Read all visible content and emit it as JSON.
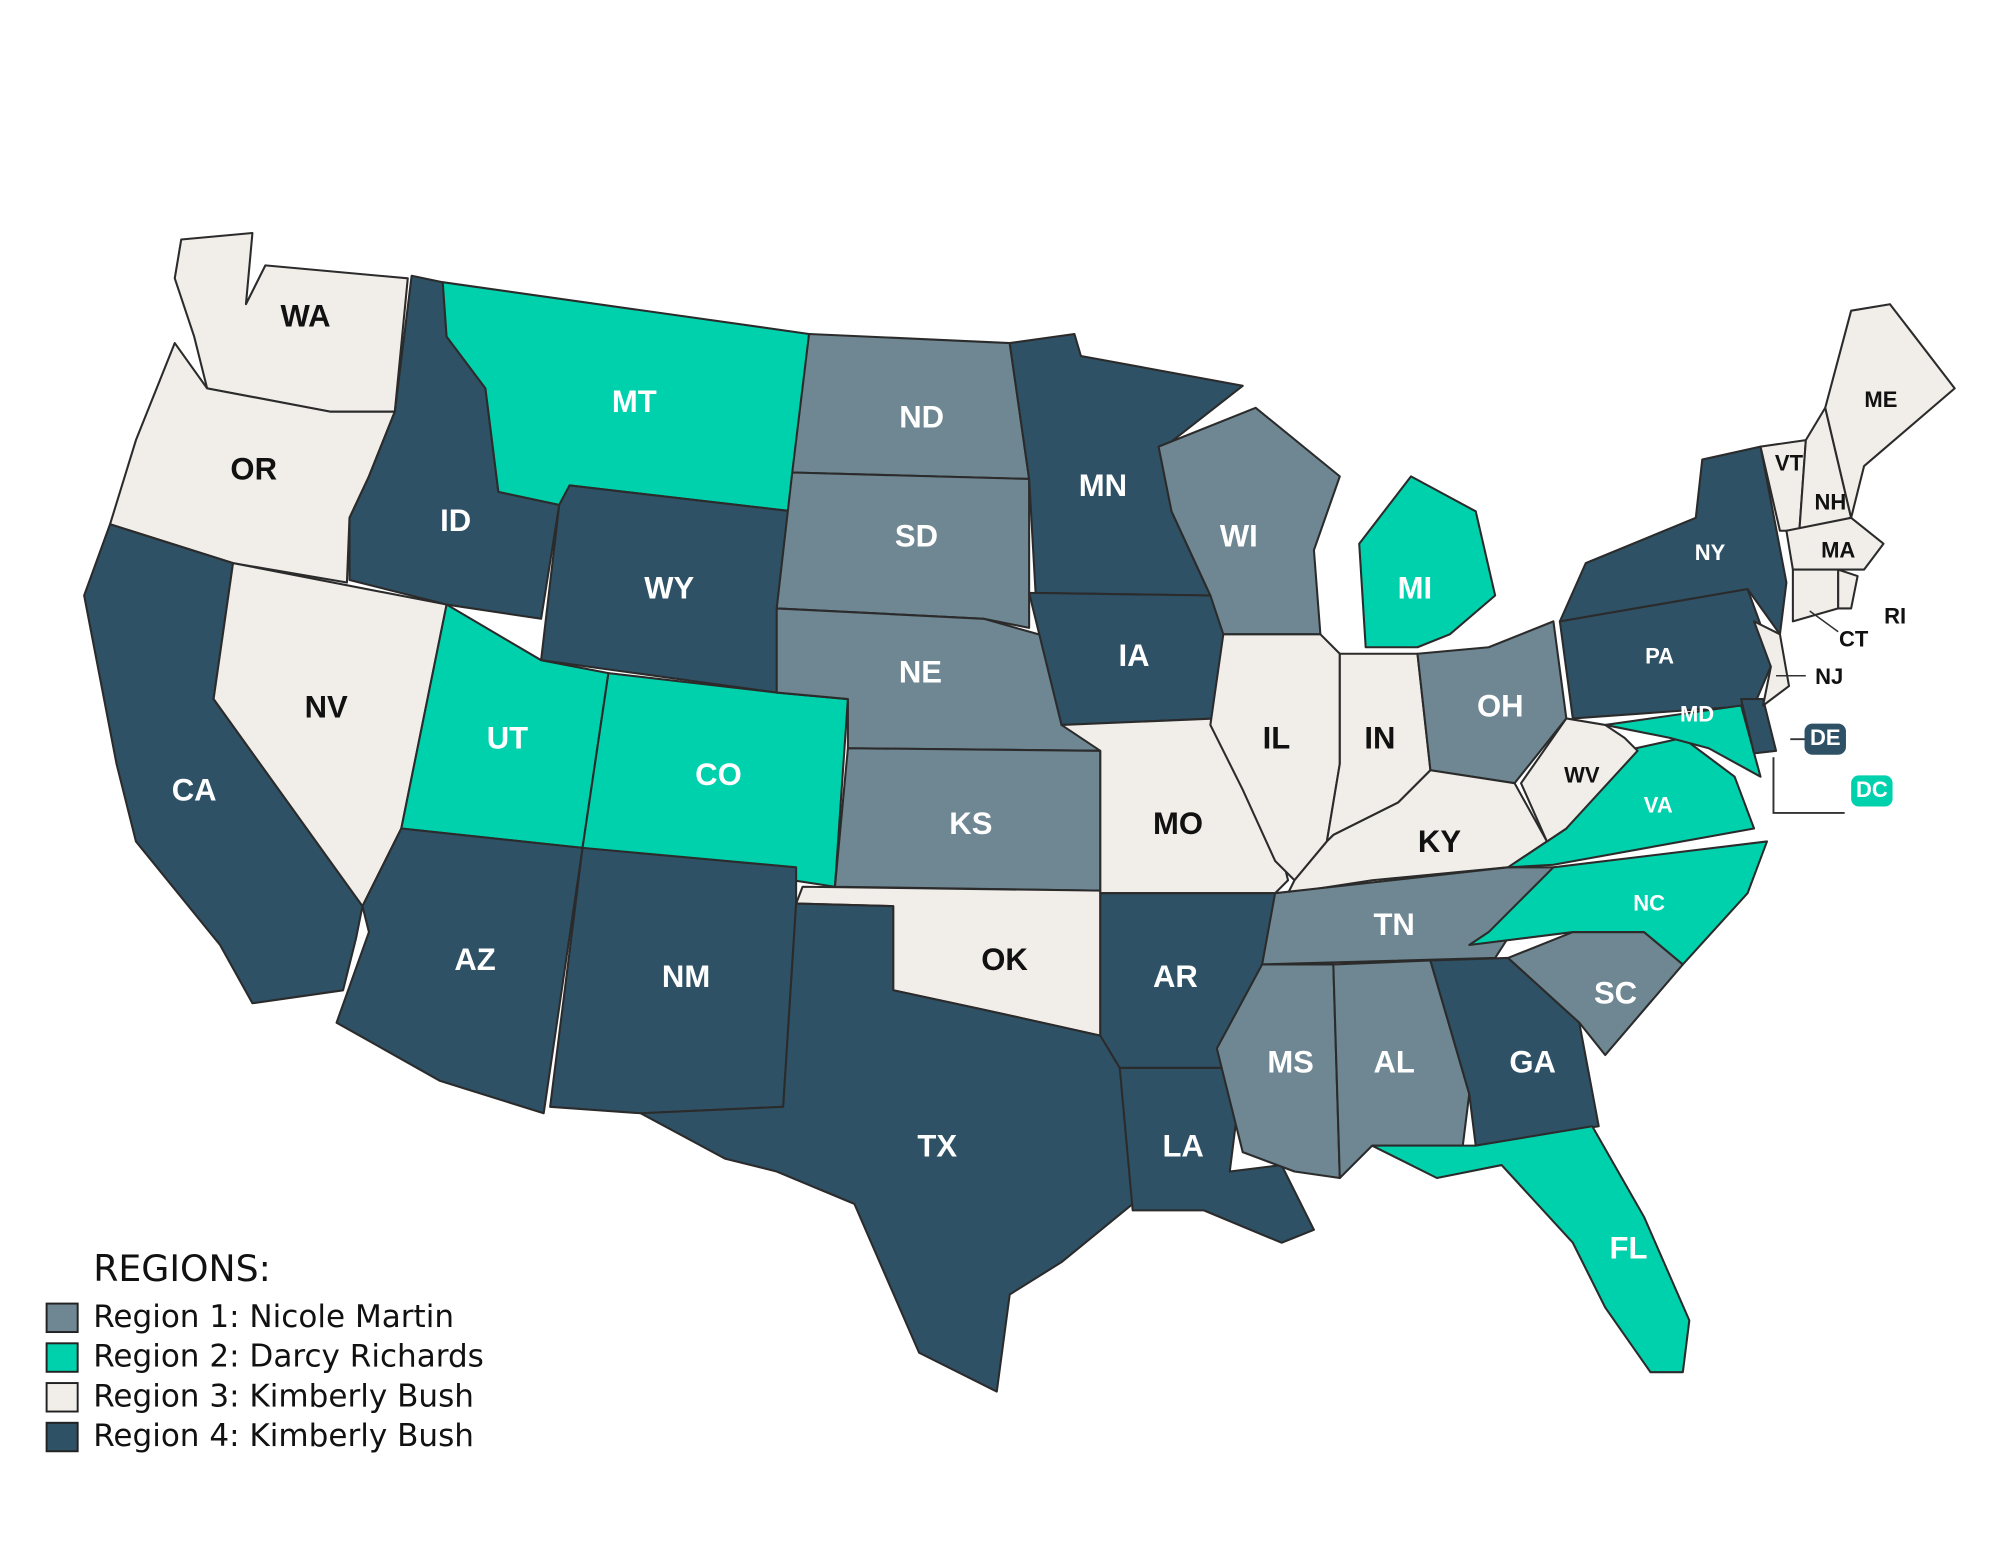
{
  "title": "REGIONS:",
  "legend": [
    {
      "label": "Region 1: Nicole Martin",
      "color": "#6e8792"
    },
    {
      "label": "Region 2: Darcy Richards",
      "color": "#00d1ad"
    },
    {
      "label": "Region 3: Kimberly Bush",
      "color": "#f1ede9"
    },
    {
      "label": "Region 4: Kimberly Bush",
      "color": "#2e5166"
    }
  ],
  "states": [
    {
      "label": "WA",
      "color": "#f1ede9"
    },
    {
      "label": "OR",
      "color": "#f1ede9"
    },
    {
      "label": "CA",
      "color": "#2e5166"
    },
    {
      "label": "NV",
      "color": "#f1ede9"
    },
    {
      "label": "ID",
      "color": "#2e5166"
    },
    {
      "label": "MT",
      "color": "#00d1ad"
    },
    {
      "label": "WY",
      "color": "#2e5166"
    },
    {
      "label": "UT",
      "color": "#00d1ad"
    },
    {
      "label": "CO",
      "color": "#00d1ad"
    },
    {
      "label": "AZ",
      "color": "#2e5166"
    },
    {
      "label": "NM",
      "color": "#2e5166"
    },
    {
      "label": "ND",
      "color": "#6e8792"
    },
    {
      "label": "SD",
      "color": "#6e8792"
    },
    {
      "label": "NE",
      "color": "#6e8792"
    },
    {
      "label": "KS",
      "color": "#6e8792"
    },
    {
      "label": "OK",
      "color": "#f1ede9"
    },
    {
      "label": "TX",
      "color": "#2e5166"
    },
    {
      "label": "MN",
      "color": "#2e5166"
    },
    {
      "label": "IA",
      "color": "#2e5166"
    },
    {
      "label": "MO",
      "color": "#f1ede9"
    },
    {
      "label": "AR",
      "color": "#2e5166"
    },
    {
      "label": "LA",
      "color": "#2e5166"
    },
    {
      "label": "WI",
      "color": "#6e8792"
    },
    {
      "label": "IL",
      "color": "#f1ede9"
    },
    {
      "label": "IN",
      "color": "#f1ede9"
    },
    {
      "label": "MI",
      "color": "#00d1ad"
    },
    {
      "label": "OH",
      "color": "#6e8792"
    },
    {
      "label": "KY",
      "color": "#f1ede9"
    },
    {
      "label": "TN",
      "color": "#6e8792"
    },
    {
      "label": "MS",
      "color": "#6e8792"
    },
    {
      "label": "AL",
      "color": "#6e8792"
    },
    {
      "label": "GA",
      "color": "#2e5166"
    },
    {
      "label": "FL",
      "color": "#00d1ad"
    },
    {
      "label": "SC",
      "color": "#6e8792"
    },
    {
      "label": "NC",
      "color": "#00d1ad"
    },
    {
      "label": "VA",
      "color": "#00d1ad"
    },
    {
      "label": "WV",
      "color": "#f1ede9"
    },
    {
      "label": "PA",
      "color": "#2e5166"
    },
    {
      "label": "NY",
      "color": "#2e5166"
    },
    {
      "label": "MD",
      "color": "#00d1ad"
    },
    {
      "label": "DE",
      "color": "#2e5166"
    },
    {
      "label": "NJ",
      "color": "#f1ede9"
    },
    {
      "label": "VT",
      "color": "#f1ede9"
    },
    {
      "label": "NH",
      "color": "#f1ede9"
    },
    {
      "label": "ME",
      "color": "#f1ede9"
    },
    {
      "label": "MA",
      "color": "#f1ede9"
    },
    {
      "label": "CT",
      "color": "#f1ede9"
    },
    {
      "label": "RI",
      "color": "#f1ede9"
    },
    {
      "label": "DC",
      "color": "#00d1ad"
    }
  ]
}
